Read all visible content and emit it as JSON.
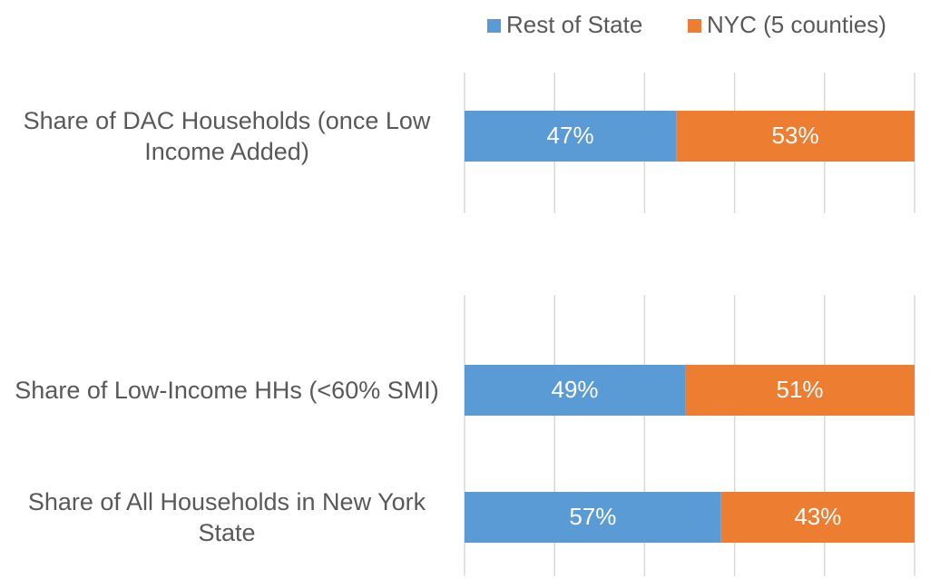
{
  "chart_data": {
    "type": "stacked-barh",
    "categories": [
      "Share of DAC Households (once Low Income Added)",
      null,
      "Share of Low-Income HHs (<60% SMI)",
      "Share of All Households in New York State"
    ],
    "series": [
      {
        "name": "Rest of State",
        "color": "#5b9bd5",
        "values": [
          47,
          null,
          49,
          57
        ],
        "value_labels": [
          "47%",
          null,
          "49%",
          "57%"
        ]
      },
      {
        "name": "NYC (5 counties)",
        "color": "#ed7d31",
        "values": [
          53,
          null,
          51,
          43
        ],
        "value_labels": [
          "53%",
          null,
          "51%",
          "43%"
        ]
      }
    ],
    "xlim": [
      0,
      100
    ],
    "xticks": [
      0,
      20,
      40,
      60,
      80,
      100
    ],
    "grid": true,
    "legend": "top-right"
  }
}
